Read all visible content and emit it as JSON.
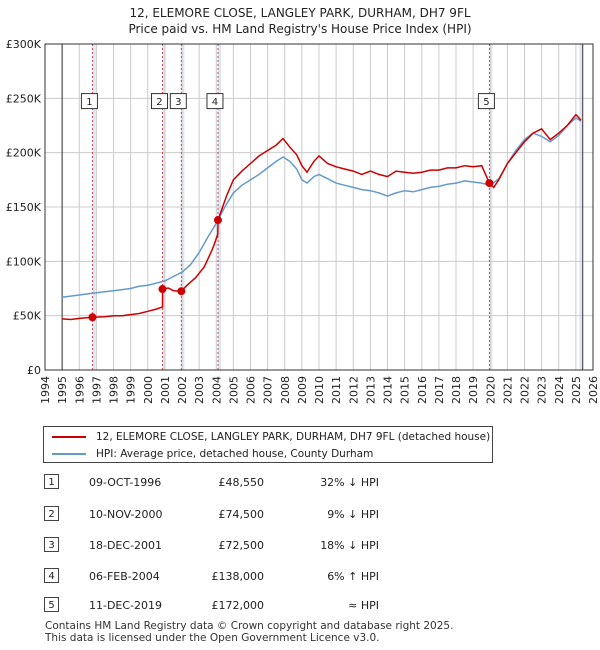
{
  "title": {
    "line1": "12, ELEMORE CLOSE, LANGLEY PARK, DURHAM, DH7 9FL",
    "line2": "Price paid vs. HM Land Registry's House Price Index (HPI)"
  },
  "colors": {
    "property": "#cc0000",
    "hpi": "#6699cc",
    "shade": "#dde6f5",
    "grid": "#cccccc"
  },
  "chart_data": {
    "type": "line",
    "title": "12, ELEMORE CLOSE, LANGLEY PARK, DURHAM, DH7 9FL — Price paid vs. HM Land Registry's House Price Index (HPI)",
    "xlabel": "",
    "ylabel": "",
    "xlim": [
      1994,
      2026
    ],
    "ylim": [
      0,
      300000
    ],
    "y_ticks": [
      0,
      50000,
      100000,
      150000,
      200000,
      250000,
      300000
    ],
    "y_tick_labels": [
      "£0",
      "£50K",
      "£100K",
      "£150K",
      "£200K",
      "£250K",
      "£300K"
    ],
    "x_ticks": [
      1994,
      1995,
      1996,
      1997,
      1998,
      1999,
      2000,
      2001,
      2002,
      2003,
      2004,
      2005,
      2006,
      2007,
      2008,
      2009,
      2010,
      2011,
      2012,
      2013,
      2014,
      2015,
      2016,
      2017,
      2018,
      2019,
      2020,
      2021,
      2022,
      2023,
      2024,
      2025,
      2026
    ],
    "x_tick_labels": [
      "1994",
      "1995",
      "1996",
      "1997",
      "1998",
      "1999",
      "2000",
      "2001",
      "2002",
      "2003",
      "2004",
      "2005",
      "2006",
      "2007",
      "2008",
      "2009",
      "2010",
      "2011",
      "2012",
      "2013",
      "2014",
      "2015",
      "2016",
      "2017",
      "2018",
      "2019",
      "2020",
      "2021",
      "2022",
      "2023",
      "2024",
      "2025",
      "2026"
    ],
    "data_extent_years": [
      1995.0,
      2025.4
    ],
    "shaded_bands": [
      [
        1996.77,
        1996.95
      ],
      [
        2000.86,
        2001.04
      ],
      [
        2001.96,
        2002.14
      ],
      [
        2004.1,
        2004.28
      ],
      [
        2019.95,
        2020.13
      ],
      [
        2025.2,
        2025.4
      ]
    ],
    "series": [
      {
        "name": "12, ELEMORE CLOSE, LANGLEY PARK, DURHAM, DH7 9FL (detached house)",
        "points": [
          [
            1995.0,
            47000
          ],
          [
            1995.5,
            46500
          ],
          [
            1996.0,
            47500
          ],
          [
            1996.77,
            48550
          ],
          [
            1997.5,
            49000
          ],
          [
            1998.0,
            50000
          ],
          [
            1998.5,
            50000
          ],
          [
            1999.0,
            51000
          ],
          [
            1999.5,
            52000
          ],
          [
            2000.0,
            54000
          ],
          [
            2000.5,
            56000
          ],
          [
            2000.86,
            58000
          ],
          [
            2000.87,
            74500
          ],
          [
            2001.2,
            75500
          ],
          [
            2001.5,
            73000
          ],
          [
            2001.96,
            72500
          ],
          [
            2002.3,
            78000
          ],
          [
            2002.8,
            85000
          ],
          [
            2003.3,
            95000
          ],
          [
            2003.8,
            112000
          ],
          [
            2004.09,
            125000
          ],
          [
            2004.1,
            138000
          ],
          [
            2004.6,
            160000
          ],
          [
            2005.0,
            175000
          ],
          [
            2005.5,
            183000
          ],
          [
            2006.0,
            190000
          ],
          [
            2006.5,
            197000
          ],
          [
            2007.0,
            202000
          ],
          [
            2007.5,
            207000
          ],
          [
            2007.9,
            213000
          ],
          [
            2008.3,
            205000
          ],
          [
            2008.7,
            198000
          ],
          [
            2009.0,
            188000
          ],
          [
            2009.3,
            182000
          ],
          [
            2009.7,
            192000
          ],
          [
            2010.0,
            197000
          ],
          [
            2010.5,
            190000
          ],
          [
            2011.0,
            187000
          ],
          [
            2011.5,
            185000
          ],
          [
            2012.0,
            183000
          ],
          [
            2012.5,
            180000
          ],
          [
            2013.0,
            183000
          ],
          [
            2013.5,
            180000
          ],
          [
            2014.0,
            178000
          ],
          [
            2014.5,
            183000
          ],
          [
            2015.0,
            182000
          ],
          [
            2015.5,
            181000
          ],
          [
            2016.0,
            182000
          ],
          [
            2016.5,
            184000
          ],
          [
            2017.0,
            184000
          ],
          [
            2017.5,
            186000
          ],
          [
            2018.0,
            186000
          ],
          [
            2018.5,
            188000
          ],
          [
            2019.0,
            187000
          ],
          [
            2019.5,
            188000
          ],
          [
            2019.95,
            172000
          ],
          [
            2020.2,
            168000
          ],
          [
            2020.5,
            175000
          ],
          [
            2021.0,
            190000
          ],
          [
            2021.5,
            200000
          ],
          [
            2022.0,
            210000
          ],
          [
            2022.5,
            218000
          ],
          [
            2023.0,
            222000
          ],
          [
            2023.5,
            212000
          ],
          [
            2024.0,
            218000
          ],
          [
            2024.5,
            225000
          ],
          [
            2025.0,
            235000
          ],
          [
            2025.3,
            230000
          ]
        ]
      },
      {
        "name": "HPI: Average price, detached house, County Durham",
        "points": [
          [
            1995.0,
            67000
          ],
          [
            1995.5,
            68000
          ],
          [
            1996.0,
            69000
          ],
          [
            1996.5,
            70000
          ],
          [
            1997.0,
            71000
          ],
          [
            1997.5,
            72000
          ],
          [
            1998.0,
            73000
          ],
          [
            1998.5,
            74000
          ],
          [
            1999.0,
            75000
          ],
          [
            1999.5,
            77000
          ],
          [
            2000.0,
            78000
          ],
          [
            2000.5,
            80000
          ],
          [
            2001.0,
            82000
          ],
          [
            2001.5,
            86000
          ],
          [
            2002.0,
            90000
          ],
          [
            2002.5,
            97000
          ],
          [
            2003.0,
            108000
          ],
          [
            2003.5,
            122000
          ],
          [
            2004.0,
            135000
          ],
          [
            2004.5,
            150000
          ],
          [
            2005.0,
            163000
          ],
          [
            2005.5,
            170000
          ],
          [
            2006.0,
            175000
          ],
          [
            2006.5,
            180000
          ],
          [
            2007.0,
            186000
          ],
          [
            2007.5,
            192000
          ],
          [
            2007.9,
            196000
          ],
          [
            2008.3,
            192000
          ],
          [
            2008.7,
            185000
          ],
          [
            2009.0,
            175000
          ],
          [
            2009.3,
            172000
          ],
          [
            2009.7,
            178000
          ],
          [
            2010.0,
            180000
          ],
          [
            2010.5,
            176000
          ],
          [
            2011.0,
            172000
          ],
          [
            2011.5,
            170000
          ],
          [
            2012.0,
            168000
          ],
          [
            2012.5,
            166000
          ],
          [
            2013.0,
            165000
          ],
          [
            2013.5,
            163000
          ],
          [
            2014.0,
            160000
          ],
          [
            2014.5,
            163000
          ],
          [
            2015.0,
            165000
          ],
          [
            2015.5,
            164000
          ],
          [
            2016.0,
            166000
          ],
          [
            2016.5,
            168000
          ],
          [
            2017.0,
            169000
          ],
          [
            2017.5,
            171000
          ],
          [
            2018.0,
            172000
          ],
          [
            2018.5,
            174000
          ],
          [
            2019.0,
            173000
          ],
          [
            2019.5,
            172000
          ],
          [
            2020.0,
            170000
          ],
          [
            2020.5,
            176000
          ],
          [
            2021.0,
            190000
          ],
          [
            2021.5,
            202000
          ],
          [
            2022.0,
            212000
          ],
          [
            2022.5,
            218000
          ],
          [
            2023.0,
            215000
          ],
          [
            2023.5,
            210000
          ],
          [
            2024.0,
            216000
          ],
          [
            2024.5,
            225000
          ],
          [
            2025.0,
            232000
          ],
          [
            2025.3,
            229000
          ]
        ]
      }
    ],
    "sales": [
      {
        "num": "1",
        "year": 1996.77,
        "price": 48550
      },
      {
        "num": "2",
        "year": 2000.86,
        "price": 74500
      },
      {
        "num": "3",
        "year": 2001.96,
        "price": 72500
      },
      {
        "num": "4",
        "year": 2004.1,
        "price": 138000
      },
      {
        "num": "5",
        "year": 2019.95,
        "price": 172000
      }
    ],
    "marker_label_value": 247000
  },
  "legend": {
    "property_label": "12, ELEMORE CLOSE, LANGLEY PARK, DURHAM, DH7 9FL (detached house)",
    "hpi_label": "HPI: Average price, detached house, County Durham"
  },
  "sales_table": [
    {
      "num": "1",
      "date": "09-OCT-1996",
      "price": "£48,550",
      "relation": "32% ↓ HPI"
    },
    {
      "num": "2",
      "date": "10-NOV-2000",
      "price": "£74,500",
      "relation": "9% ↓ HPI"
    },
    {
      "num": "3",
      "date": "18-DEC-2001",
      "price": "£72,500",
      "relation": "18% ↓ HPI"
    },
    {
      "num": "4",
      "date": "06-FEB-2004",
      "price": "£138,000",
      "relation": "6% ↑ HPI"
    },
    {
      "num": "5",
      "date": "11-DEC-2019",
      "price": "£172,000",
      "relation": "≈ HPI"
    }
  ],
  "footer": {
    "line1": "Contains HM Land Registry data © Crown copyright and database right 2025.",
    "line2": "This data is licensed under the Open Government Licence v3.0."
  }
}
